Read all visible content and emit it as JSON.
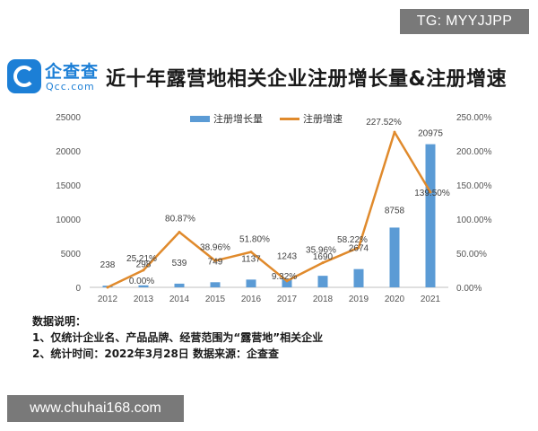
{
  "watermark_top": "TG: MYYJJPP",
  "watermark_bottom": "www.chuhai168.com",
  "logo": {
    "name": "企查查",
    "domain": "Qcc.com"
  },
  "title": "近十年露营地相关企业注册增长量&注册增速",
  "legend": {
    "bar": "注册增长量",
    "line": "注册增速"
  },
  "notes": [
    "数据说明：",
    "1、仅统计企业名、产品品牌、经营范围为“露营地”相关企业",
    "2、统计时间：2022年3月28日    数据来源：企查查"
  ],
  "colors": {
    "bar": "#5b9bd5",
    "line": "#e08a2c",
    "logo": "#1c7fd6"
  },
  "chart_data": {
    "type": "bar",
    "title": "近十年露营地相关企业注册增长量&注册增速",
    "categories": [
      "2012",
      "2013",
      "2014",
      "2015",
      "2016",
      "2017",
      "2018",
      "2019",
      "2020",
      "2021"
    ],
    "series": [
      {
        "name": "注册增长量",
        "type": "bar",
        "axis": "left",
        "values": [
          238,
          298,
          539,
          749,
          1137,
          1243,
          1690,
          2674,
          8758,
          20975
        ],
        "labels": [
          "238",
          "298",
          "539",
          "749",
          "1137",
          "1243",
          "1690",
          "2674",
          "8758",
          "20975"
        ]
      },
      {
        "name": "注册增速",
        "type": "line",
        "axis": "right",
        "values": [
          0,
          25.21,
          80.87,
          38.96,
          51.8,
          9.32,
          35.96,
          58.22,
          227.52,
          139.5
        ],
        "labels": [
          "",
          "25.21%",
          "80.87%",
          "38.96%",
          "51.80%",
          "9.32%",
          "35.96%",
          "58.22%",
          "227.52%",
          "139.50%"
        ]
      }
    ],
    "extra_labels": [
      "0.00%"
    ],
    "y_left": {
      "ylim": [
        0,
        25000
      ],
      "ticks": [
        "0",
        "5000",
        "10000",
        "15000",
        "20000",
        "25000"
      ]
    },
    "y_right": {
      "ylim": [
        0,
        250
      ],
      "ticks": [
        "0.00%",
        "50.00%",
        "100.00%",
        "150.00%",
        "200.00%",
        "250.00%"
      ]
    },
    "legend_position": "top-center",
    "grid": false
  }
}
